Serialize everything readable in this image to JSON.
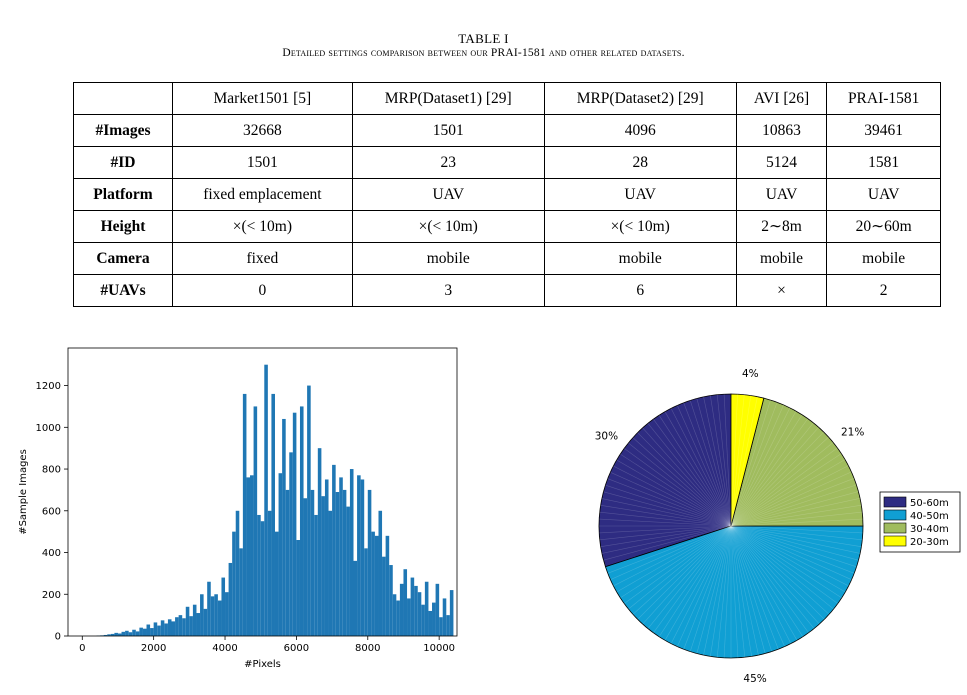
{
  "caption": {
    "table_number": "TABLE I",
    "text": "Detailed settings comparison between our PRAI-1581 and other related datasets."
  },
  "table": {
    "header": [
      "",
      "Market1501 [5]",
      "MRP(Dataset1) [29]",
      "MRP(Dataset2) [29]",
      "AVI [26]",
      "PRAI-1581"
    ],
    "rows": [
      {
        "label": "#Images",
        "cells": [
          "32668",
          "1501",
          "4096",
          "10863",
          "39461"
        ]
      },
      {
        "label": "#ID",
        "cells": [
          "1501",
          "23",
          "28",
          "5124",
          "1581"
        ]
      },
      {
        "label": "Platform",
        "cells": [
          "fixed emplacement",
          "UAV",
          "UAV",
          "UAV",
          "UAV"
        ]
      },
      {
        "label": "Height",
        "cells": [
          "×(< 10m)",
          "×(< 10m)",
          "×(< 10m)",
          "2∼8m",
          "20∼60m"
        ]
      },
      {
        "label": "Camera",
        "cells": [
          "fixed",
          "mobile",
          "mobile",
          "mobile",
          "mobile"
        ]
      },
      {
        "label": "#UAVs",
        "cells": [
          "0",
          "3",
          "6",
          "×",
          "2"
        ]
      }
    ]
  },
  "chart_data": [
    {
      "type": "bar",
      "xlabel": "#Pixels",
      "ylabel": "#Sample Images",
      "xlim": [
        -400,
        10500
      ],
      "ylim": [
        0,
        1380
      ],
      "xticks": [
        0,
        2000,
        4000,
        6000,
        8000,
        10000
      ],
      "yticks": [
        0,
        200,
        400,
        600,
        800,
        1000,
        1200
      ],
      "bin_width": 100,
      "bin_start": 400,
      "color": "#1f77b4",
      "values": [
        2,
        3,
        5,
        8,
        10,
        15,
        12,
        20,
        25,
        18,
        30,
        22,
        40,
        35,
        55,
        38,
        65,
        50,
        75,
        60,
        80,
        70,
        90,
        100,
        85,
        140,
        95,
        150,
        110,
        200,
        130,
        260,
        190,
        200,
        170,
        280,
        210,
        350,
        500,
        600,
        420,
        1160,
        760,
        770,
        1100,
        580,
        550,
        1300,
        600,
        1160,
        500,
        780,
        1040,
        700,
        880,
        1070,
        460,
        1100,
        660,
        1200,
        700,
        580,
        900,
        670,
        750,
        600,
        820,
        690,
        760,
        700,
        620,
        800,
        360,
        770,
        750,
        420,
        700,
        500,
        480,
        600,
        380,
        480,
        340,
        200,
        170,
        250,
        320,
        180,
        280,
        240,
        210,
        150,
        260,
        120,
        160,
        250,
        90,
        180,
        100,
        220
      ]
    },
    {
      "type": "pie",
      "legend_position": "right",
      "slices": [
        {
          "label": "50-60m",
          "value": 30,
          "pct_label": "30%",
          "color": "#2e2c82"
        },
        {
          "label": "40-50m",
          "value": 45,
          "pct_label": "45%",
          "color": "#109fd3"
        },
        {
          "label": "30-40m",
          "value": 21,
          "pct_label": "21%",
          "color": "#a0bc5e"
        },
        {
          "label": "20-30m",
          "value": 4,
          "pct_label": "4%",
          "color": "#ffff00"
        }
      ]
    }
  ]
}
